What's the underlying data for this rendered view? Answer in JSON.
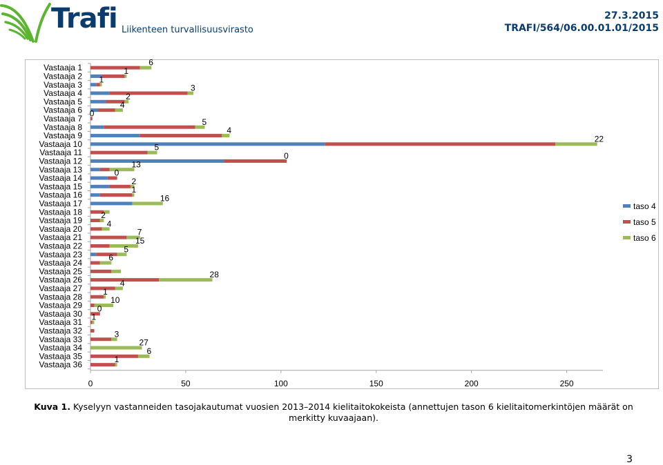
{
  "header": {
    "logo_name": "Trafi",
    "logo_subtitle": "Liikenteen turvallisuusvirasto",
    "date": "27.3.2015",
    "reference": "TRAFI/564/06.00.01.01/2015"
  },
  "colors": {
    "taso4": "#4f81bd",
    "taso5": "#c0504d",
    "taso6": "#9bbb59",
    "logo_green": "#5cb531",
    "brand_blue": "#0a3c6e"
  },
  "caption": {
    "label": "Kuva 1.",
    "text": "Kyselyyn vastanneiden tasojakautumat vuosien 2013–2014 kielitaitokokeista (annettujen tason 6 kielitaitomerkintöjen määrät on merkitty kuvaajaan)."
  },
  "page_number": "3",
  "chart_data": {
    "type": "bar",
    "orientation": "horizontal",
    "stacked": true,
    "categories": [
      "Vastaaja 1",
      "Vastaaja 2",
      "Vastaaja 3",
      "Vastaaja 4",
      "Vastaaja 5",
      "Vastaaja 6",
      "Vastaaja 7",
      "Vastaaja 8",
      "Vastaaja 9",
      "Vastaaja 10",
      "Vastaaja 11",
      "Vastaaja 12",
      "Vastaaja 13",
      "Vastaaja 14",
      "Vastaaja 15",
      "Vastaaja 16",
      "Vastaaja 17",
      "Vastaaja 18",
      "Vastaaja 19",
      "Vastaaja 20",
      "Vastaaja 21",
      "Vastaaja 22",
      "Vastaaja 23",
      "Vastaaja 24",
      "Vastaaja 25",
      "Vastaaja 26",
      "Vastaaja 27",
      "Vastaaja 28",
      "Vastaaja 29",
      "Vastaaja 30",
      "Vastaaja 31",
      "Vastaaja 32",
      "Vastaaja 33",
      "Vastaaja 34",
      "Vastaaja 35",
      "Vastaaja 36"
    ],
    "series": [
      {
        "name": "taso 4",
        "color": "#4f81bd",
        "values": [
          0,
          6,
          3,
          10,
          8,
          4,
          0,
          7,
          26,
          123,
          0,
          70,
          5,
          9,
          10,
          5,
          22,
          0,
          0,
          0,
          0,
          0,
          3,
          0,
          0,
          0,
          0,
          0,
          0,
          0,
          0,
          0,
          0,
          0,
          0,
          0
        ]
      },
      {
        "name": "taso 5",
        "color": "#c0504d",
        "values": [
          26,
          12,
          2,
          41,
          10,
          9,
          1,
          48,
          43,
          121,
          30,
          33,
          5,
          5,
          11,
          17,
          0,
          7,
          5,
          6,
          19,
          10,
          11,
          5,
          11,
          36,
          13,
          7,
          2,
          5,
          1,
          2,
          11,
          0,
          25,
          13
        ]
      },
      {
        "name": "taso 6",
        "color": "#9bbb59",
        "values": [
          6,
          1,
          1,
          3,
          2,
          4,
          0,
          5,
          4,
          22,
          5,
          0,
          13,
          0,
          2,
          1,
          16,
          3,
          2,
          4,
          7,
          15,
          5,
          6,
          5,
          28,
          4,
          1,
          10,
          0,
          1,
          0,
          3,
          27,
          6,
          1
        ]
      }
    ],
    "data_labels": [
      "6",
      "1",
      "1",
      "3",
      "2",
      "4",
      "0",
      "5",
      "4",
      "22",
      "5",
      "0",
      "13",
      "0",
      "2",
      "1",
      "16",
      "",
      "2",
      "4",
      "7",
      "15",
      "5",
      "6",
      "",
      "28",
      "4",
      "1",
      "10",
      "0",
      "1",
      "",
      "3",
      "27",
      "6",
      "1"
    ],
    "xticks": [
      "0",
      "50",
      "100",
      "150",
      "200",
      "250"
    ],
    "xlim": [
      0,
      269
    ],
    "legend_position": "right",
    "grid": false,
    "title": "",
    "xlabel": "",
    "ylabel": ""
  }
}
